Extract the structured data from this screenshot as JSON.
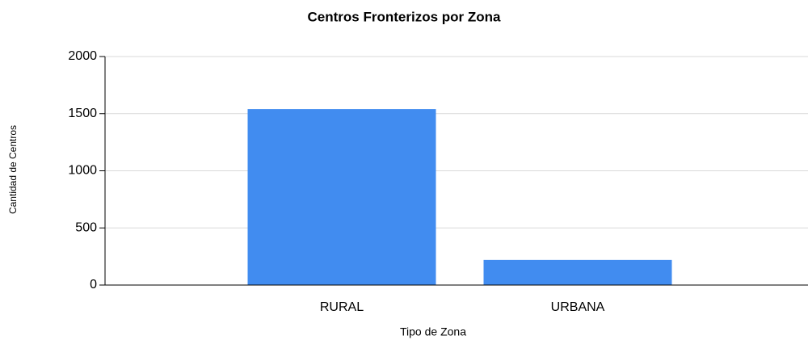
{
  "chart_data": {
    "type": "bar",
    "title": "Centros Fronterizos por Zona",
    "x_label": "Tipo de Zona",
    "y_label": "Cantidad de Centros",
    "categories": [
      "RURAL",
      "URBANA"
    ],
    "values": [
      1540,
      220
    ],
    "color": "#418cf0",
    "ylim": [
      0,
      2000
    ],
    "yticks": [
      0,
      500,
      1000,
      1500,
      2000
    ],
    "grid": true
  }
}
